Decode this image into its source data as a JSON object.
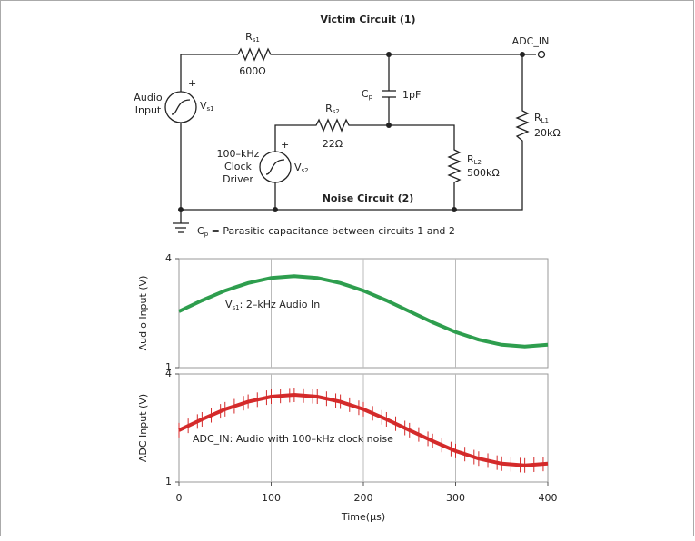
{
  "circuit": {
    "victim_title": "Victim Circuit (1)",
    "noise_title": "Noise Circuit (2)",
    "adc_label": "ADC_IN",
    "rs1": {
      "base": "R",
      "sub": "s1",
      "value": "600Ω"
    },
    "cp": {
      "base": "C",
      "sub": "p",
      "value": "1pF"
    },
    "rs2": {
      "base": "R",
      "sub": "s2",
      "value": "22Ω"
    },
    "rl2": {
      "base": "R",
      "sub": "L2",
      "value": "500kΩ"
    },
    "rl1": {
      "base": "R",
      "sub": "L1",
      "value": "20kΩ"
    },
    "vs1": {
      "base": "V",
      "sub": "s1",
      "label_lines": [
        "Audio",
        "Input"
      ],
      "polarity": "+"
    },
    "vs2": {
      "base": "V",
      "sub": "s2",
      "label_lines": [
        "100–kHz",
        "Clock",
        "Driver"
      ],
      "polarity": "+"
    },
    "caption": {
      "base": "C",
      "sub": "p",
      "text": " = Parasitic capacitance between circuits 1 and 2"
    }
  },
  "chart_data": [
    {
      "type": "line",
      "y_label": "Audio Input (V)",
      "color": "#2e9e4e",
      "annotation": {
        "base": "V",
        "sub": "s1",
        "text": ": 2–kHz Audio In"
      },
      "x": [
        0,
        25,
        50,
        75,
        100,
        125,
        150,
        175,
        200,
        225,
        250,
        275,
        300,
        325,
        350,
        375,
        400
      ],
      "values": [
        2.55,
        2.85,
        3.12,
        3.33,
        3.47,
        3.52,
        3.47,
        3.33,
        3.12,
        2.85,
        2.55,
        2.25,
        1.98,
        1.77,
        1.63,
        1.58,
        1.63
      ],
      "xlim": [
        0,
        400
      ],
      "ylim": [
        1,
        4
      ],
      "yticks": [
        1,
        4
      ]
    },
    {
      "type": "line",
      "y_label": "ADC Input (V)",
      "color": "#d42a2a",
      "noise": true,
      "annotation": {
        "text": "ADC_IN: Audio with 100–kHz clock noise"
      },
      "x": [
        0,
        25,
        50,
        75,
        100,
        125,
        150,
        175,
        200,
        225,
        250,
        275,
        300,
        325,
        350,
        375,
        400
      ],
      "values": [
        2.44,
        2.74,
        3.02,
        3.23,
        3.37,
        3.42,
        3.37,
        3.23,
        3.02,
        2.74,
        2.44,
        2.14,
        1.86,
        1.65,
        1.51,
        1.46,
        1.51
      ],
      "xlim": [
        0,
        400
      ],
      "ylim": [
        1,
        4
      ],
      "yticks": [
        1,
        4
      ],
      "xticks": [
        0,
        100,
        200,
        300,
        400
      ],
      "x_label": "Time(μs)"
    }
  ]
}
